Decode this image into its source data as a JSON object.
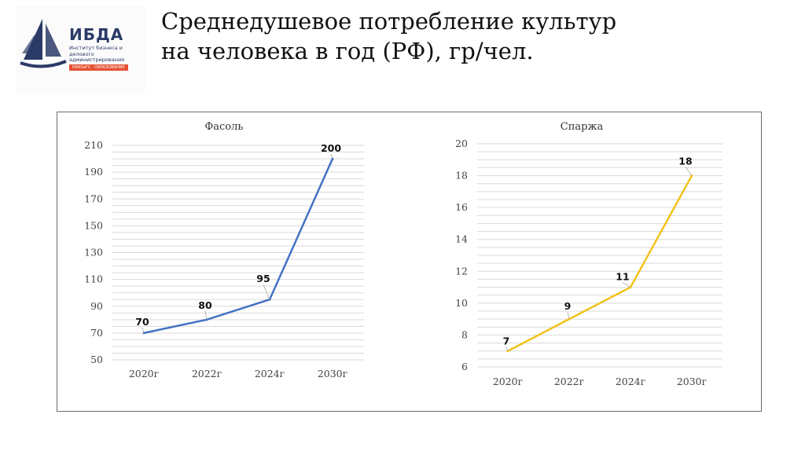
{
  "page_title_line1": "Среднедушевое потребление культур",
  "page_title_line2": "на человека в год (РФ), гр/чел.",
  "logo": {
    "title": "ИБДА",
    "subtitle": "Институт бизнеса и делового администрирования",
    "strip": "РАНХиГС · ОБРАЗОВАНИЕ",
    "color": "#2b3a67",
    "accent": "#e55133"
  },
  "chart_data": [
    {
      "type": "line",
      "title": "Фасоль",
      "categories": [
        "2020г",
        "2022г",
        "2024г",
        "2030г"
      ],
      "values": [
        70,
        80,
        95,
        200
      ],
      "ylim": [
        50,
        210
      ],
      "yticks": [
        50,
        70,
        90,
        110,
        130,
        150,
        170,
        190,
        210
      ],
      "color": "#4472c4",
      "grid": true,
      "legend": "none"
    },
    {
      "type": "line",
      "title": "Спаржа",
      "categories": [
        "2020г",
        "2022г",
        "2024г",
        "2030г"
      ],
      "values": [
        7,
        9,
        11,
        18
      ],
      "ylim": [
        6,
        20
      ],
      "yticks": [
        6,
        8,
        10,
        12,
        14,
        16,
        18,
        20
      ],
      "color": "#f2c21b",
      "grid": true,
      "legend": "none"
    }
  ]
}
